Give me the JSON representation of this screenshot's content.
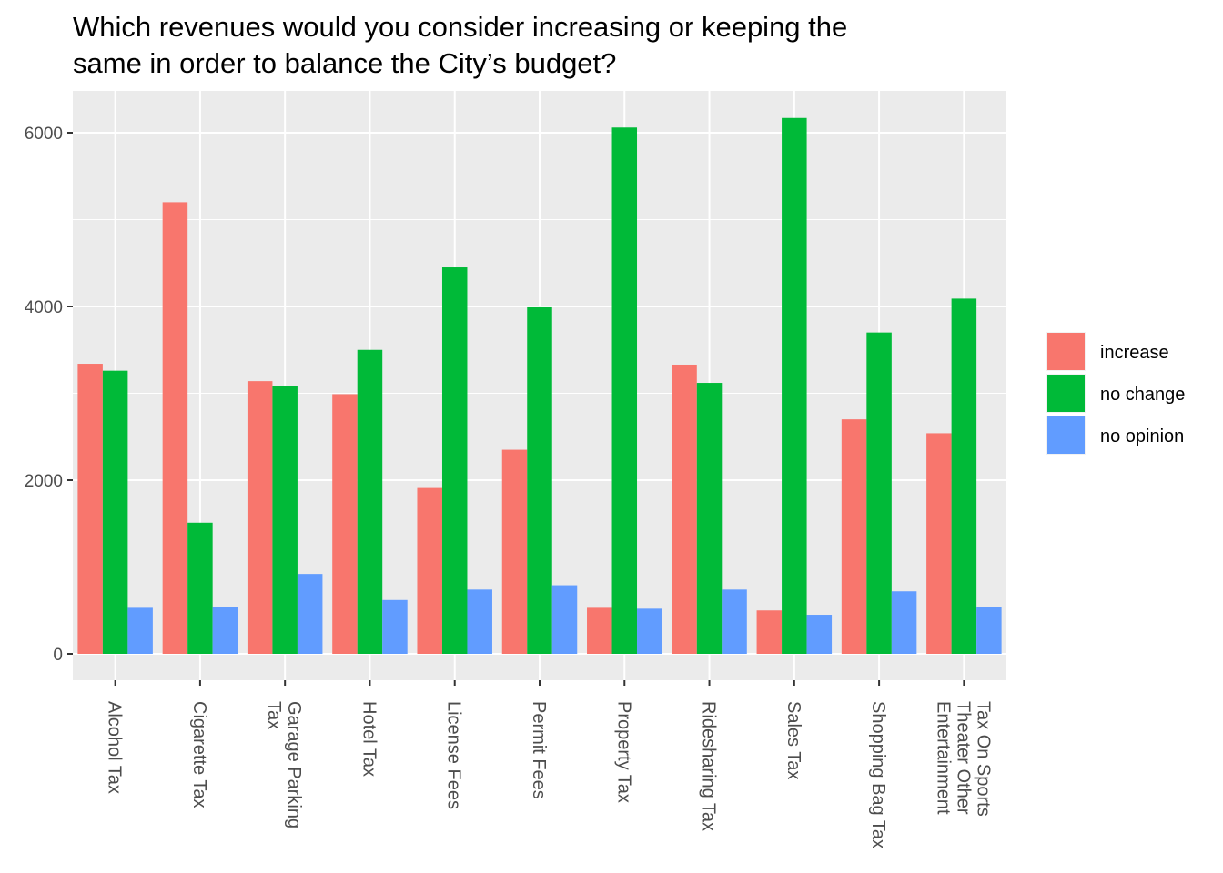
{
  "chart_data": {
    "type": "bar",
    "title_lines": [
      "Which revenues would you consider increasing or keeping the",
      "same in order to balance the City’s budget?"
    ],
    "categories": [
      [
        "Alcohol Tax"
      ],
      [
        "Cigarette Tax"
      ],
      [
        "Garage Parking",
        "Tax"
      ],
      [
        "Hotel Tax"
      ],
      [
        "License Fees"
      ],
      [
        "Permit Fees"
      ],
      [
        "Property Tax"
      ],
      [
        "Ridesharing Tax"
      ],
      [
        "Sales Tax"
      ],
      [
        "Shopping Bag Tax"
      ],
      [
        "Tax On Sports",
        "Theater Other",
        "Entertainment"
      ]
    ],
    "series": [
      {
        "name": "increase",
        "color": "#F8766D",
        "values": [
          3340,
          5200,
          3140,
          2990,
          1910,
          2350,
          530,
          3330,
          500,
          2700,
          2540
        ]
      },
      {
        "name": "no change",
        "color": "#00BA38",
        "values": [
          3260,
          1510,
          3080,
          3500,
          4450,
          3990,
          6060,
          3120,
          6170,
          3700,
          4090
        ]
      },
      {
        "name": "no opinion",
        "color": "#619CFF",
        "values": [
          530,
          540,
          920,
          620,
          740,
          790,
          520,
          740,
          450,
          720,
          540
        ]
      }
    ],
    "yticks": [
      0,
      2000,
      4000,
      6000
    ],
    "ylim": [
      -300,
      6500
    ],
    "grid": true,
    "legend_position": "right"
  }
}
